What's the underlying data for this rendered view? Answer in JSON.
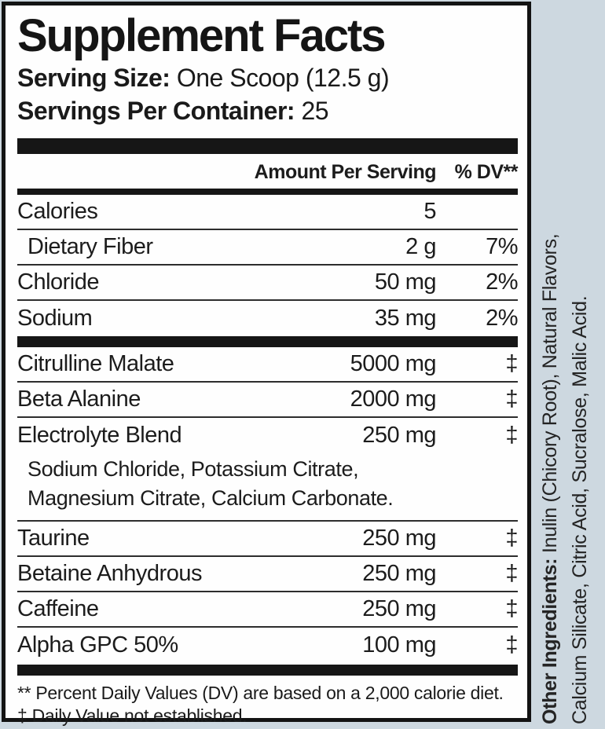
{
  "page": {
    "background_color": "#cdd8e0",
    "panel_background": "#fefefe",
    "ink_color": "#161616"
  },
  "label": {
    "title": "Supplement Facts",
    "serving_size": {
      "label": "Serving Size:",
      "value": "One Scoop (12.5 g)"
    },
    "servings_per_container": {
      "label": "Servings Per Container:",
      "value": "25"
    },
    "columns": {
      "amount": "Amount Per Serving",
      "dv": "% DV**"
    },
    "rows": [
      {
        "name": "Calories",
        "amount": "5",
        "dv": ""
      },
      {
        "name": "Dietary Fiber",
        "amount": "2 g",
        "dv": "7%"
      },
      {
        "name": "Chloride",
        "amount": "50 mg",
        "dv": "2%"
      },
      {
        "name": "Sodium",
        "amount": "35 mg",
        "dv": "2%"
      },
      {
        "name": "Citrulline Malate",
        "amount": "5000 mg",
        "dv": "‡"
      },
      {
        "name": "Beta Alanine",
        "amount": "2000 mg",
        "dv": "‡"
      },
      {
        "name": "Electrolyte Blend",
        "amount": "250 mg",
        "dv": "‡",
        "sub_line_1": "Sodium Chloride, Potassium Citrate,",
        "sub_line_2": "Magnesium Citrate, Calcium Carbonate."
      },
      {
        "name": "Taurine",
        "amount": "250 mg",
        "dv": "‡"
      },
      {
        "name": "Betaine Anhydrous",
        "amount": "250 mg",
        "dv": "‡"
      },
      {
        "name": "Caffeine",
        "amount": "250 mg",
        "dv": "‡"
      },
      {
        "name": "Alpha GPC 50%",
        "amount": "100 mg",
        "dv": "‡"
      }
    ],
    "footnotes": {
      "dv_note": "** Percent Daily Values (DV) are based on a 2,000 calorie diet.",
      "dagger_note": "‡ Daily Value not established."
    }
  },
  "side_text": {
    "label": "Other Ingredients:",
    "line_1_rest": " Inulin (Chicory Root), Natural Flavors,",
    "line_2": "Calcium Silicate, Citric Acid, Sucralose, Malic Acid."
  }
}
